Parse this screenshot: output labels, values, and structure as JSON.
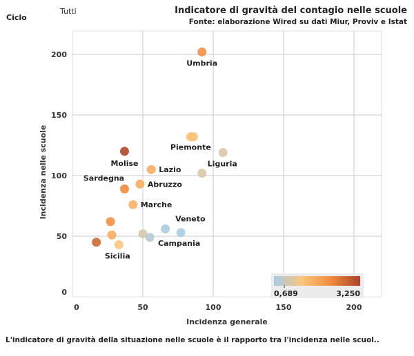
{
  "filter": {
    "label": "Ciclo",
    "value": "Tutti"
  },
  "footer": "L'indicatore di gravità della situazione nelle scuole è il rapporto tra l'incidenza nelle scuol..",
  "chart_data": {
    "type": "scatter",
    "title": "Indicatore di gravità del contagio nelle scuole",
    "subtitle": "Fonte: elaborazione Wired su dati Miur, Proviv e Istat",
    "xlabel": "Incidenza generale",
    "ylabel": "Incidenza nelle scuole",
    "xlim": [
      -3,
      217
    ],
    "ylim": [
      -5,
      220
    ],
    "xticks": [
      0,
      50,
      100,
      150,
      200
    ],
    "yticks": [
      0,
      50,
      100,
      150,
      200
    ],
    "grid": true,
    "color_legend": {
      "min_label": "0,689",
      "max_label": "3,250",
      "min": 0.689,
      "max": 3.25,
      "colors": [
        "#a6cde6",
        "#fdc57a",
        "#f08a3c",
        "#a9442a"
      ],
      "placement": "bottom-right"
    },
    "points": [
      {
        "label": "Umbria",
        "x": 92,
        "y": 202,
        "value": 2.3
      },
      {
        "label": "Piemonte",
        "x": 84,
        "y": 132,
        "value": 1.6
      },
      {
        "label": "",
        "x": 86,
        "y": 132,
        "value": 1.6
      },
      {
        "label": "",
        "x": 107,
        "y": 119,
        "value": 1.2
      },
      {
        "label": "Liguria",
        "x": 92,
        "y": 102,
        "value": 1.2
      },
      {
        "label": "Molise",
        "x": 37,
        "y": 120,
        "value": 3.2
      },
      {
        "label": "Lazio",
        "x": 56,
        "y": 105,
        "value": 1.9
      },
      {
        "label": "Abruzzo",
        "x": 48,
        "y": 93,
        "value": 1.9
      },
      {
        "label": "Sardegna",
        "x": 37,
        "y": 89,
        "value": 2.4
      },
      {
        "label": "Marche",
        "x": 43,
        "y": 76,
        "value": 1.8
      },
      {
        "label": "",
        "x": 27,
        "y": 62,
        "value": 2.3
      },
      {
        "label": "",
        "x": 28,
        "y": 51,
        "value": 1.9
      },
      {
        "label": "",
        "x": 17,
        "y": 45,
        "value": 2.8
      },
      {
        "label": "Sicilia",
        "x": 33,
        "y": 43,
        "value": 1.5
      },
      {
        "label": "",
        "x": 50,
        "y": 52,
        "value": 1.15
      },
      {
        "label": "",
        "x": 55,
        "y": 49,
        "value": 0.85
      },
      {
        "label": "",
        "x": 66,
        "y": 56,
        "value": 0.75
      },
      {
        "label": "Veneto",
        "x": 77,
        "y": 53,
        "value": 0.7
      }
    ]
  }
}
